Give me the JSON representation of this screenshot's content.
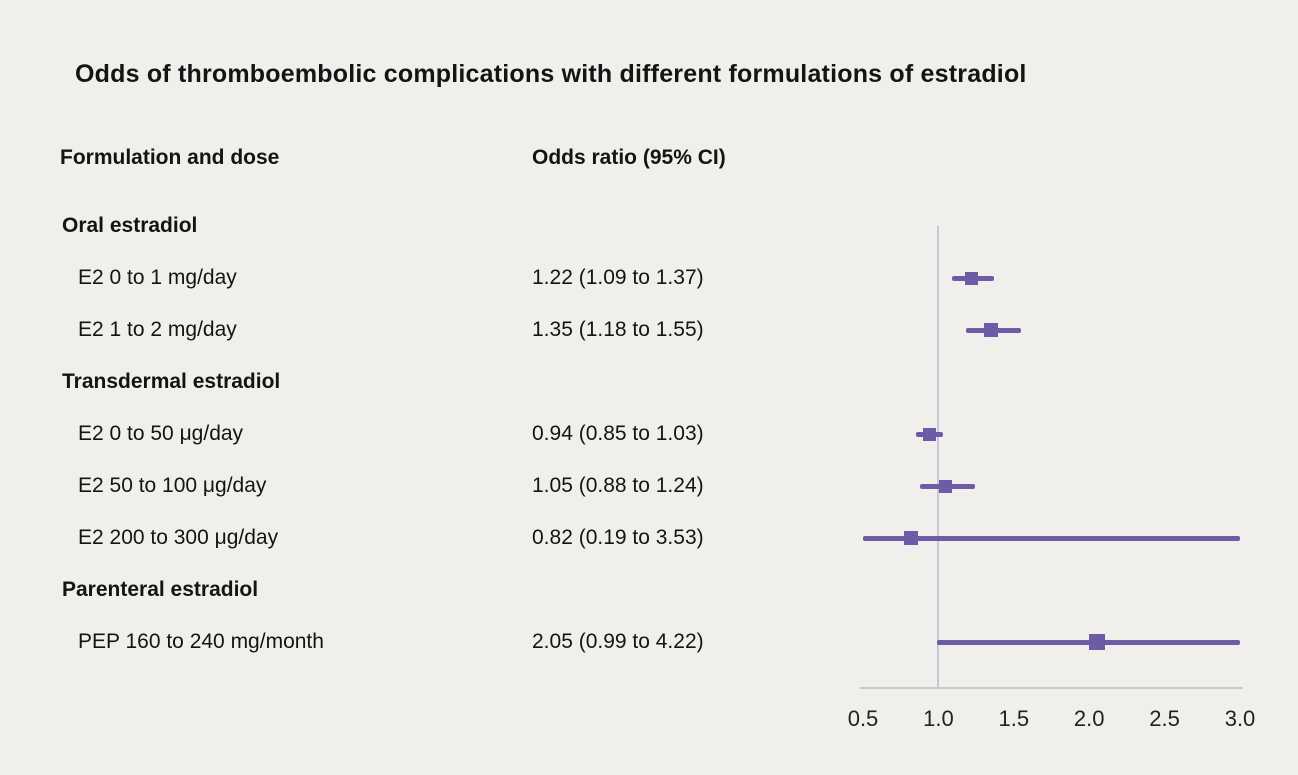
{
  "title": "Odds of thromboembolic complications with different formulations of estradiol",
  "columns": {
    "formulation": "Formulation and dose",
    "odds": "Odds ratio (95% CI)"
  },
  "colors": {
    "background": "#f0efec",
    "marker": "#6c5ca6",
    "refline": "#c7c3d9",
    "axis_line": "#c9c7d2",
    "text": "#141414"
  },
  "chart_data": {
    "type": "forest",
    "title": "Odds of thromboembolic complications with different formulations of estradiol",
    "xlabel": "Odds ratio",
    "xlim": [
      0.5,
      3.0
    ],
    "refline": 1.0,
    "tick_labels": [
      "0.5",
      "1.0",
      "1.5",
      "2.0",
      "2.5",
      "3.0"
    ],
    "clip_high_at": 3.0,
    "rows": [
      {
        "kind": "group",
        "label": "Oral estradiol"
      },
      {
        "kind": "item",
        "label": "E2 0 to 1 mg/day",
        "or": 1.22,
        "low": 1.09,
        "high": 1.37,
        "display": "1.22 (1.09 to 1.37)",
        "marker_size": 13
      },
      {
        "kind": "item",
        "label": "E2 1 to 2 mg/day",
        "or": 1.35,
        "low": 1.18,
        "high": 1.55,
        "display": "1.35 (1.18 to 1.55)",
        "marker_size": 14
      },
      {
        "kind": "group",
        "label": "Transdermal estradiol"
      },
      {
        "kind": "item",
        "label": "E2 0 to 50 μg/day",
        "or": 0.94,
        "low": 0.85,
        "high": 1.03,
        "display": "0.94 (0.85 to 1.03)",
        "marker_size": 13
      },
      {
        "kind": "item",
        "label": "E2 50 to 100 μg/day",
        "or": 1.05,
        "low": 0.88,
        "high": 1.24,
        "display": "1.05 (0.88 to 1.24)",
        "marker_size": 13
      },
      {
        "kind": "item",
        "label": "E2 200 to 300 μg/day",
        "or": 0.82,
        "low": 0.19,
        "high": 3.53,
        "display": "0.82 (0.19 to 3.53)",
        "marker_size": 14
      },
      {
        "kind": "group",
        "label": "Parenteral estradiol"
      },
      {
        "kind": "item",
        "label": "PEP 160 to 240 mg/month",
        "or": 2.05,
        "low": 0.99,
        "high": 4.22,
        "display": "2.05 (0.99 to 4.22)",
        "marker_size": 16
      }
    ]
  }
}
